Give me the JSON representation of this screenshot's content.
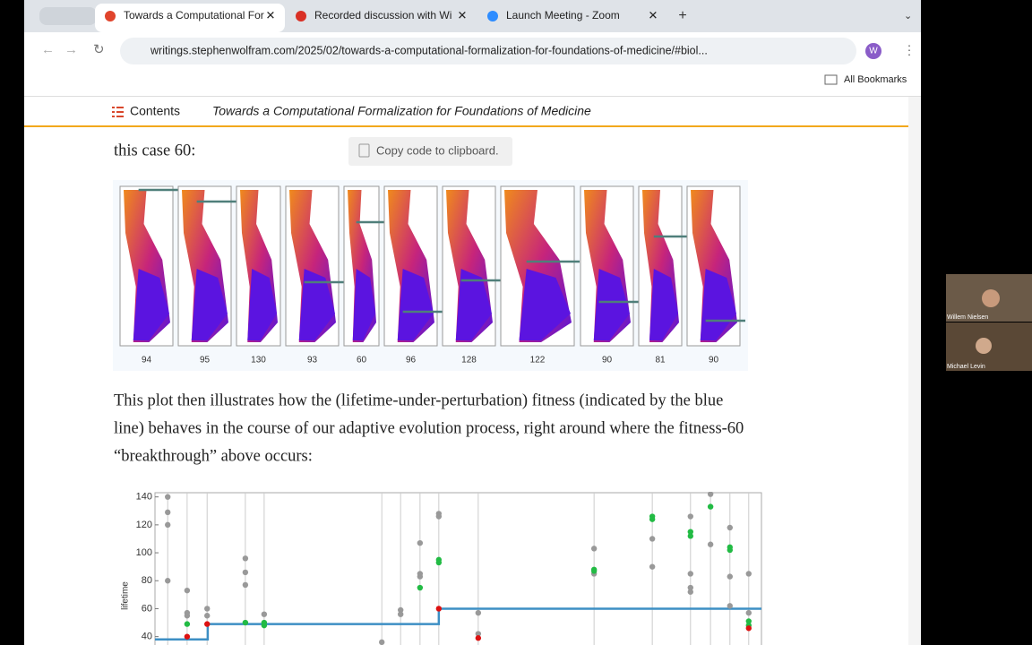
{
  "browser": {
    "tabs": [
      "Towards a Computational For",
      "Recorded discussion with Wi",
      "Launch Meeting - Zoom"
    ],
    "url": "writings.stephenwolfram.com/2025/02/towards-a-computational-formalization-for-foundations-of-medicine/#biol...",
    "profile": "W",
    "bookmarks": "All Bookmarks"
  },
  "toc": {
    "label": "Contents",
    "title": "Towards a Computational Formalization for Foundations of Medicine"
  },
  "article": {
    "intro": "this case 60:",
    "tooltip": "Copy code to clipboard.",
    "figure_labels": [
      94,
      95,
      130,
      93,
      60,
      96,
      128,
      122,
      90,
      81,
      90
    ],
    "paragraph": [
      "This plot then illustrates how the (lifetime-under-perturbation) fitness (indicated by the blue",
      "line) behaves in the course of our adaptive evolution process, right around where the fitness-60",
      "“breakthrough” above occurs:"
    ]
  },
  "chart_data": {
    "type": "scatter",
    "ylabel": "lifetime",
    "xlim": [
      0,
      100
    ],
    "ylim": [
      34,
      143
    ],
    "yticks": [
      40,
      60,
      80,
      100,
      120,
      140
    ],
    "line": {
      "color": "#3d8fc4",
      "x": [
        0,
        8.7,
        8.7,
        46.8,
        46.8,
        100
      ],
      "y": [
        38,
        38,
        49,
        49,
        60,
        60
      ]
    },
    "series": [
      {
        "color": "#999999",
        "x": [
          2.1,
          2.1,
          2.1,
          2.1,
          5.3,
          5.3,
          5.3,
          8.6,
          8.6,
          14.9,
          14.9,
          14.9,
          18.0,
          37.4,
          40.5,
          40.5,
          43.7,
          43.7,
          43.7,
          46.8,
          46.8,
          53.3,
          53.3,
          72.4,
          72.4,
          82.0,
          82.0,
          88.3,
          88.3,
          88.3,
          88.3,
          91.6,
          91.6,
          94.8,
          94.8,
          94.8,
          97.9,
          97.9
        ],
        "y": [
          140,
          129,
          120,
          80,
          73,
          57,
          55,
          60,
          55,
          96,
          86,
          77,
          56,
          36,
          59,
          56,
          107,
          85,
          83,
          128,
          126,
          57,
          42,
          103,
          85,
          110,
          90,
          126,
          85,
          75,
          72,
          142,
          106,
          118,
          83,
          62,
          85,
          57
        ]
      },
      {
        "color": "#22bb44",
        "x": [
          5.3,
          14.9,
          18.0,
          18.0,
          43.7,
          46.8,
          46.8,
          72.4,
          72.4,
          82.0,
          82.0,
          88.3,
          88.3,
          91.6,
          94.8,
          94.8,
          97.9,
          97.9
        ],
        "y": [
          49,
          50,
          50,
          48,
          75,
          95,
          93,
          88,
          87,
          126,
          124,
          115,
          112,
          133,
          104,
          102,
          51,
          48
        ]
      },
      {
        "color": "#dd1111",
        "x": [
          5.3,
          8.6,
          46.8,
          53.3,
          97.9
        ],
        "y": [
          40,
          49,
          60,
          39,
          46
        ]
      }
    ]
  },
  "zoom": {
    "participants": [
      "Willem Nielsen",
      "Michael Levin"
    ]
  }
}
